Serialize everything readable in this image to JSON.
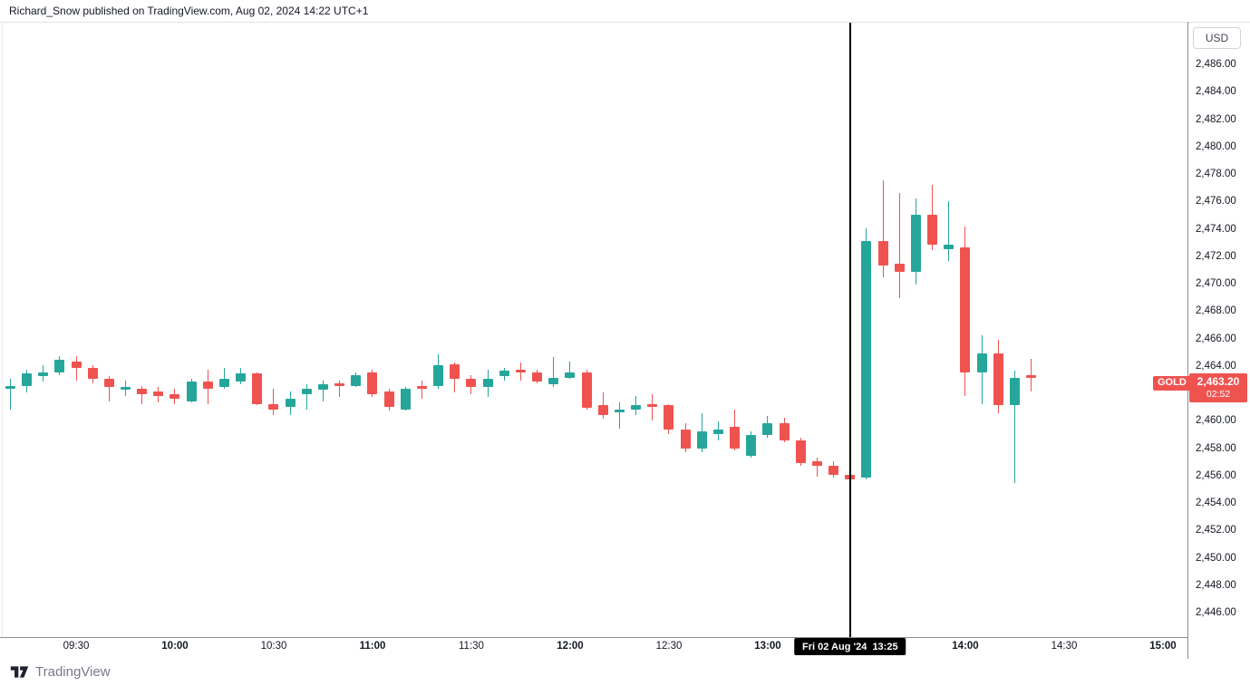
{
  "header": {
    "attribution": "Richard_Snow published on TradingView.com, Aug 02, 2024 14:22 UTC+1"
  },
  "price_axis": {
    "currency_button": "USD",
    "ticks": [
      {
        "label": "2,486.00",
        "value": 2486
      },
      {
        "label": "2,484.00",
        "value": 2484
      },
      {
        "label": "2,482.00",
        "value": 2482
      },
      {
        "label": "2,480.00",
        "value": 2480
      },
      {
        "label": "2,478.00",
        "value": 2478
      },
      {
        "label": "2,476.00",
        "value": 2476
      },
      {
        "label": "2,474.00",
        "value": 2474
      },
      {
        "label": "2,472.00",
        "value": 2472
      },
      {
        "label": "2,470.00",
        "value": 2470
      },
      {
        "label": "2,468.00",
        "value": 2468
      },
      {
        "label": "2,466.00",
        "value": 2466
      },
      {
        "label": "2,464.00",
        "value": 2464
      },
      {
        "label": "2,460.00",
        "value": 2460
      },
      {
        "label": "2,458.00",
        "value": 2458
      },
      {
        "label": "2,456.00",
        "value": 2456
      },
      {
        "label": "2,454.00",
        "value": 2454
      },
      {
        "label": "2,452.00",
        "value": 2452
      },
      {
        "label": "2,450.00",
        "value": 2450
      },
      {
        "label": "2,448.00",
        "value": 2448
      },
      {
        "label": "2,446.00",
        "value": 2446
      }
    ]
  },
  "time_axis": {
    "ticks": [
      {
        "label": "09:30",
        "bold": false
      },
      {
        "label": "10:00",
        "bold": true
      },
      {
        "label": "10:30",
        "bold": false
      },
      {
        "label": "11:00",
        "bold": true
      },
      {
        "label": "11:30",
        "bold": false
      },
      {
        "label": "12:00",
        "bold": true
      },
      {
        "label": "12:30",
        "bold": false
      },
      {
        "label": "13:00",
        "bold": true
      },
      {
        "label": "14:00",
        "bold": true
      },
      {
        "label": "14:30",
        "bold": false
      },
      {
        "label": "15:00",
        "bold": true
      }
    ]
  },
  "last_price_label": {
    "symbol": "GOLD",
    "price": "2,463.20",
    "price_value": 2463.2,
    "countdown": "02:52",
    "color": "#ef5350"
  },
  "event_marker": {
    "date": "Fri 02 Aug '24",
    "time": "13:25",
    "label": "Fri 02 Aug '24  13:25"
  },
  "footer": {
    "logo_text": "TradingView"
  },
  "chart_data": {
    "type": "candlestick",
    "symbol": "GOLD",
    "currency": "USD",
    "interval_minutes": 5,
    "up_color": "#26a69a",
    "down_color": "#ef5350",
    "y_axis": {
      "min": 2444.3,
      "max": 2489.1,
      "tick_step": 2,
      "grid": false
    },
    "x_axis": {
      "start": "09:10",
      "end": "15:00",
      "visible_label_start": "09:30"
    },
    "legend_position": "none",
    "candles": [
      {
        "t": "09:10",
        "o": 2462.4,
        "h": 2463.1,
        "l": 2460.9,
        "c": 2462.6
      },
      {
        "t": "09:15",
        "o": 2462.6,
        "h": 2463.8,
        "l": 2462.1,
        "c": 2463.5
      },
      {
        "t": "09:20",
        "o": 2463.3,
        "h": 2464.1,
        "l": 2462.9,
        "c": 2463.6
      },
      {
        "t": "09:25",
        "o": 2463.6,
        "h": 2464.8,
        "l": 2463.4,
        "c": 2464.5
      },
      {
        "t": "09:30",
        "o": 2464.4,
        "h": 2464.8,
        "l": 2463.0,
        "c": 2463.9
      },
      {
        "t": "09:35",
        "o": 2463.9,
        "h": 2464.1,
        "l": 2462.8,
        "c": 2463.1
      },
      {
        "t": "09:40",
        "o": 2463.1,
        "h": 2463.3,
        "l": 2461.5,
        "c": 2462.5
      },
      {
        "t": "09:45",
        "o": 2462.3,
        "h": 2463.0,
        "l": 2461.9,
        "c": 2462.5
      },
      {
        "t": "09:50",
        "o": 2462.4,
        "h": 2462.6,
        "l": 2461.3,
        "c": 2462.0
      },
      {
        "t": "09:55",
        "o": 2462.2,
        "h": 2462.5,
        "l": 2461.4,
        "c": 2461.9
      },
      {
        "t": "10:00",
        "o": 2462.0,
        "h": 2462.4,
        "l": 2461.3,
        "c": 2461.7
      },
      {
        "t": "10:05",
        "o": 2461.5,
        "h": 2463.1,
        "l": 2461.4,
        "c": 2462.9
      },
      {
        "t": "10:10",
        "o": 2462.9,
        "h": 2463.8,
        "l": 2461.3,
        "c": 2462.4
      },
      {
        "t": "10:15",
        "o": 2462.5,
        "h": 2463.9,
        "l": 2462.4,
        "c": 2463.1
      },
      {
        "t": "10:20",
        "o": 2462.9,
        "h": 2463.9,
        "l": 2462.7,
        "c": 2463.5
      },
      {
        "t": "10:25",
        "o": 2463.5,
        "h": 2463.6,
        "l": 2461.2,
        "c": 2461.3
      },
      {
        "t": "10:30",
        "o": 2461.3,
        "h": 2462.4,
        "l": 2460.5,
        "c": 2460.9
      },
      {
        "t": "10:35",
        "o": 2461.1,
        "h": 2462.2,
        "l": 2460.5,
        "c": 2461.7
      },
      {
        "t": "10:40",
        "o": 2462.0,
        "h": 2462.7,
        "l": 2460.9,
        "c": 2462.4
      },
      {
        "t": "10:45",
        "o": 2462.3,
        "h": 2463.0,
        "l": 2461.5,
        "c": 2462.7
      },
      {
        "t": "10:50",
        "o": 2462.8,
        "h": 2463.0,
        "l": 2461.8,
        "c": 2462.6
      },
      {
        "t": "10:55",
        "o": 2462.6,
        "h": 2463.6,
        "l": 2462.5,
        "c": 2463.4
      },
      {
        "t": "11:00",
        "o": 2463.6,
        "h": 2463.8,
        "l": 2461.8,
        "c": 2462.0
      },
      {
        "t": "11:05",
        "o": 2462.2,
        "h": 2462.4,
        "l": 2460.8,
        "c": 2461.1
      },
      {
        "t": "11:10",
        "o": 2460.9,
        "h": 2462.5,
        "l": 2460.8,
        "c": 2462.4
      },
      {
        "t": "11:15",
        "o": 2462.6,
        "h": 2463.0,
        "l": 2461.7,
        "c": 2462.4
      },
      {
        "t": "11:20",
        "o": 2462.6,
        "h": 2464.9,
        "l": 2462.4,
        "c": 2464.1
      },
      {
        "t": "11:25",
        "o": 2464.2,
        "h": 2464.3,
        "l": 2462.1,
        "c": 2463.1
      },
      {
        "t": "11:30",
        "o": 2463.1,
        "h": 2463.4,
        "l": 2462.0,
        "c": 2462.5
      },
      {
        "t": "11:35",
        "o": 2462.5,
        "h": 2463.8,
        "l": 2461.8,
        "c": 2463.1
      },
      {
        "t": "11:40",
        "o": 2463.3,
        "h": 2463.9,
        "l": 2463.0,
        "c": 2463.7
      },
      {
        "t": "11:45",
        "o": 2463.8,
        "h": 2464.3,
        "l": 2463.0,
        "c": 2463.6
      },
      {
        "t": "11:50",
        "o": 2463.6,
        "h": 2463.8,
        "l": 2462.8,
        "c": 2462.9
      },
      {
        "t": "11:55",
        "o": 2462.7,
        "h": 2464.7,
        "l": 2462.5,
        "c": 2463.2
      },
      {
        "t": "12:00",
        "o": 2463.2,
        "h": 2464.4,
        "l": 2463.1,
        "c": 2463.6
      },
      {
        "t": "12:05",
        "o": 2463.6,
        "h": 2463.8,
        "l": 2460.9,
        "c": 2461.0
      },
      {
        "t": "12:10",
        "o": 2461.2,
        "h": 2462.1,
        "l": 2460.2,
        "c": 2460.5
      },
      {
        "t": "12:15",
        "o": 2460.7,
        "h": 2461.4,
        "l": 2459.5,
        "c": 2460.9
      },
      {
        "t": "12:20",
        "o": 2460.9,
        "h": 2461.9,
        "l": 2460.5,
        "c": 2461.2
      },
      {
        "t": "12:25",
        "o": 2461.3,
        "h": 2462.0,
        "l": 2460.1,
        "c": 2461.1
      },
      {
        "t": "12:30",
        "o": 2461.2,
        "h": 2461.3,
        "l": 2459.1,
        "c": 2459.4
      },
      {
        "t": "12:35",
        "o": 2459.4,
        "h": 2459.9,
        "l": 2457.8,
        "c": 2458.0
      },
      {
        "t": "12:40",
        "o": 2458.0,
        "h": 2460.6,
        "l": 2457.8,
        "c": 2459.3
      },
      {
        "t": "12:45",
        "o": 2459.1,
        "h": 2460.0,
        "l": 2458.6,
        "c": 2459.4
      },
      {
        "t": "12:50",
        "o": 2459.6,
        "h": 2460.9,
        "l": 2457.9,
        "c": 2458.0
      },
      {
        "t": "12:55",
        "o": 2457.5,
        "h": 2459.3,
        "l": 2457.4,
        "c": 2459.0
      },
      {
        "t": "13:00",
        "o": 2459.0,
        "h": 2460.4,
        "l": 2458.8,
        "c": 2459.9
      },
      {
        "t": "13:05",
        "o": 2459.9,
        "h": 2460.3,
        "l": 2458.5,
        "c": 2458.6
      },
      {
        "t": "13:10",
        "o": 2458.6,
        "h": 2458.8,
        "l": 2456.8,
        "c": 2457.0
      },
      {
        "t": "13:15",
        "o": 2457.1,
        "h": 2457.4,
        "l": 2456.0,
        "c": 2456.8
      },
      {
        "t": "13:20",
        "o": 2456.8,
        "h": 2457.1,
        "l": 2455.9,
        "c": 2456.1
      },
      {
        "t": "13:25",
        "o": 2456.1,
        "h": 2456.3,
        "l": 2455.6,
        "c": 2455.8
      },
      {
        "t": "13:30",
        "o": 2455.9,
        "h": 2474.1,
        "l": 2455.8,
        "c": 2473.2
      },
      {
        "t": "13:35",
        "o": 2473.2,
        "h": 2477.6,
        "l": 2470.5,
        "c": 2471.4
      },
      {
        "t": "13:40",
        "o": 2471.5,
        "h": 2476.7,
        "l": 2469.0,
        "c": 2470.9
      },
      {
        "t": "13:45",
        "o": 2470.9,
        "h": 2476.3,
        "l": 2470.0,
        "c": 2475.1
      },
      {
        "t": "13:50",
        "o": 2475.1,
        "h": 2477.3,
        "l": 2472.5,
        "c": 2472.9
      },
      {
        "t": "13:55",
        "o": 2472.6,
        "h": 2476.1,
        "l": 2471.7,
        "c": 2472.9
      },
      {
        "t": "14:00",
        "o": 2472.7,
        "h": 2474.2,
        "l": 2461.9,
        "c": 2463.6
      },
      {
        "t": "14:05",
        "o": 2463.6,
        "h": 2466.3,
        "l": 2461.3,
        "c": 2465.0
      },
      {
        "t": "14:10",
        "o": 2465.0,
        "h": 2466.0,
        "l": 2460.6,
        "c": 2461.2
      },
      {
        "t": "14:15",
        "o": 2461.2,
        "h": 2463.7,
        "l": 2455.5,
        "c": 2463.2
      },
      {
        "t": "14:20",
        "o": 2463.4,
        "h": 2464.6,
        "l": 2462.2,
        "c": 2463.2
      }
    ]
  }
}
